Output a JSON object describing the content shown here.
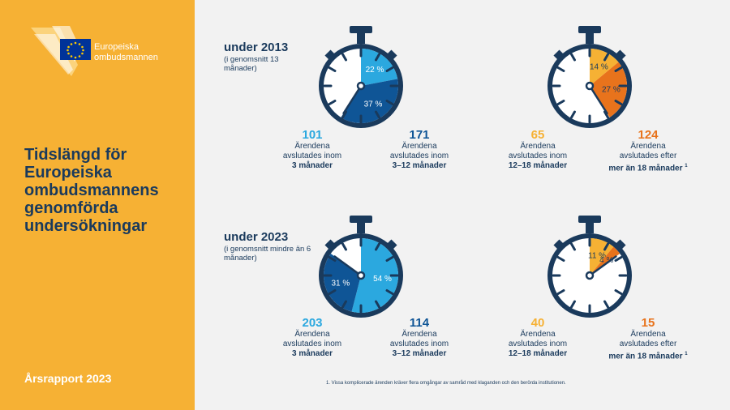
{
  "sidebar": {
    "logo_line1": "Europeiska",
    "logo_line2": "ombudsmannen",
    "title_lines": [
      "Tidslängd för",
      "Europeiska",
      "ombudsmannens",
      "genomförda",
      "undersökningar"
    ],
    "report_label": "Årsrapport 2023"
  },
  "colors": {
    "sidebar": "#f6b134",
    "navy": "#1a3a5c",
    "light_blue": "#2ba8df",
    "dark_blue": "#0f5596",
    "yellow": "#f6b134",
    "orange": "#e8731c"
  },
  "years": [
    {
      "heading": "under 2013",
      "subtitle": "(i genomsnitt 13 månader)",
      "watches": [
        {
          "slices": [
            {
              "label": "22 %",
              "value": 22,
              "color": "#2ba8df"
            },
            {
              "label": "37 %",
              "value": 37,
              "color": "#0f5596"
            }
          ]
        },
        {
          "slices": [
            {
              "label": "14 %",
              "value": 14,
              "color": "#f6b134"
            },
            {
              "label": "27 %",
              "value": 27,
              "color": "#e8731c"
            }
          ]
        }
      ],
      "stats": [
        {
          "number": "101",
          "line1": "Ärendena",
          "line2": "avslutades inom",
          "line3": "3 månader",
          "sup": ""
        },
        {
          "number": "171",
          "line1": "Ärendena",
          "line2": "avslutades inom",
          "line3": "3–12 månader",
          "sup": ""
        },
        {
          "number": "65",
          "line1": "Ärendena",
          "line2": "avslutades inom",
          "line3": "12–18 månader",
          "sup": ""
        },
        {
          "number": "124",
          "line1": "Ärendena",
          "line2": "avslutades efter",
          "line3": "mer än 18 månader",
          "sup": "1"
        }
      ]
    },
    {
      "heading": "under 2023",
      "subtitle": "(i genomsnitt mindre än 6 månader)",
      "watches": [
        {
          "slices": [
            {
              "label": "54 %",
              "value": 54,
              "color": "#2ba8df"
            },
            {
              "label": "31 %",
              "value": 31,
              "color": "#0f5596"
            }
          ]
        },
        {
          "slices": [
            {
              "label": "11 %",
              "value": 11,
              "color": "#f6b134"
            },
            {
              "label": "4 %",
              "value": 4,
              "color": "#e8731c"
            }
          ]
        }
      ],
      "stats": [
        {
          "number": "203",
          "line1": "Ärendena",
          "line2": "avslutades inom",
          "line3": "3 månader",
          "sup": ""
        },
        {
          "number": "114",
          "line1": "Ärendena",
          "line2": "avslutades inom",
          "line3": "3–12 månader",
          "sup": ""
        },
        {
          "number": "40",
          "line1": "Ärendena",
          "line2": "avslutades inom",
          "line3": "12–18 månader",
          "sup": ""
        },
        {
          "number": "15",
          "line1": "Ärendena",
          "line2": "avslutades efter",
          "line3": "mer än 18 månader",
          "sup": "1"
        }
      ]
    }
  ],
  "footnote": "1. Vissa komplicerade ärenden kräver flera omgångar av samråd med klaganden och den berörda institutionen."
}
